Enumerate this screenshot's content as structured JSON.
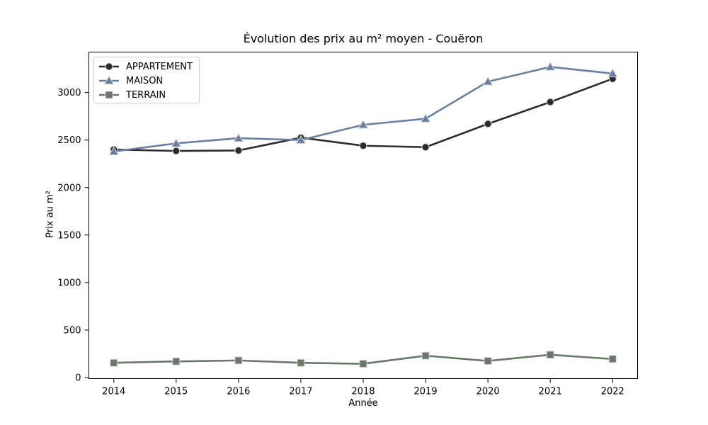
{
  "chart_data": {
    "type": "line",
    "title": "Évolution des prix au m² moyen - Couëron",
    "xlabel": "Année",
    "ylabel": "Prix au m²",
    "categories": [
      "2014",
      "2015",
      "2016",
      "2017",
      "2018",
      "2019",
      "2020",
      "2021",
      "2022"
    ],
    "series": [
      {
        "name": "APPARTEMENT",
        "marker": "circle",
        "color": "#2b2b2b",
        "values": [
          2400,
          2385,
          2390,
          2525,
          2440,
          2425,
          2670,
          2900,
          3145
        ]
      },
      {
        "name": "MAISON",
        "marker": "triangle",
        "color": "#6a7f9f",
        "values": [
          2380,
          2465,
          2520,
          2500,
          2660,
          2725,
          3115,
          3270,
          3200
        ]
      },
      {
        "name": "TERRAIN",
        "marker": "square",
        "color": "#697669",
        "values": [
          155,
          170,
          180,
          155,
          145,
          230,
          175,
          240,
          195
        ]
      }
    ],
    "yticks": [
      0,
      500,
      1000,
      1500,
      2000,
      2500,
      3000
    ],
    "ylim": [
      -11,
      3426
    ],
    "grid": false,
    "legend_position": "upper-left",
    "line_width": 2.6,
    "marker_edge_color": "#d4d8d4",
    "axis_color": "#000000",
    "background_color": "#ffffff"
  }
}
